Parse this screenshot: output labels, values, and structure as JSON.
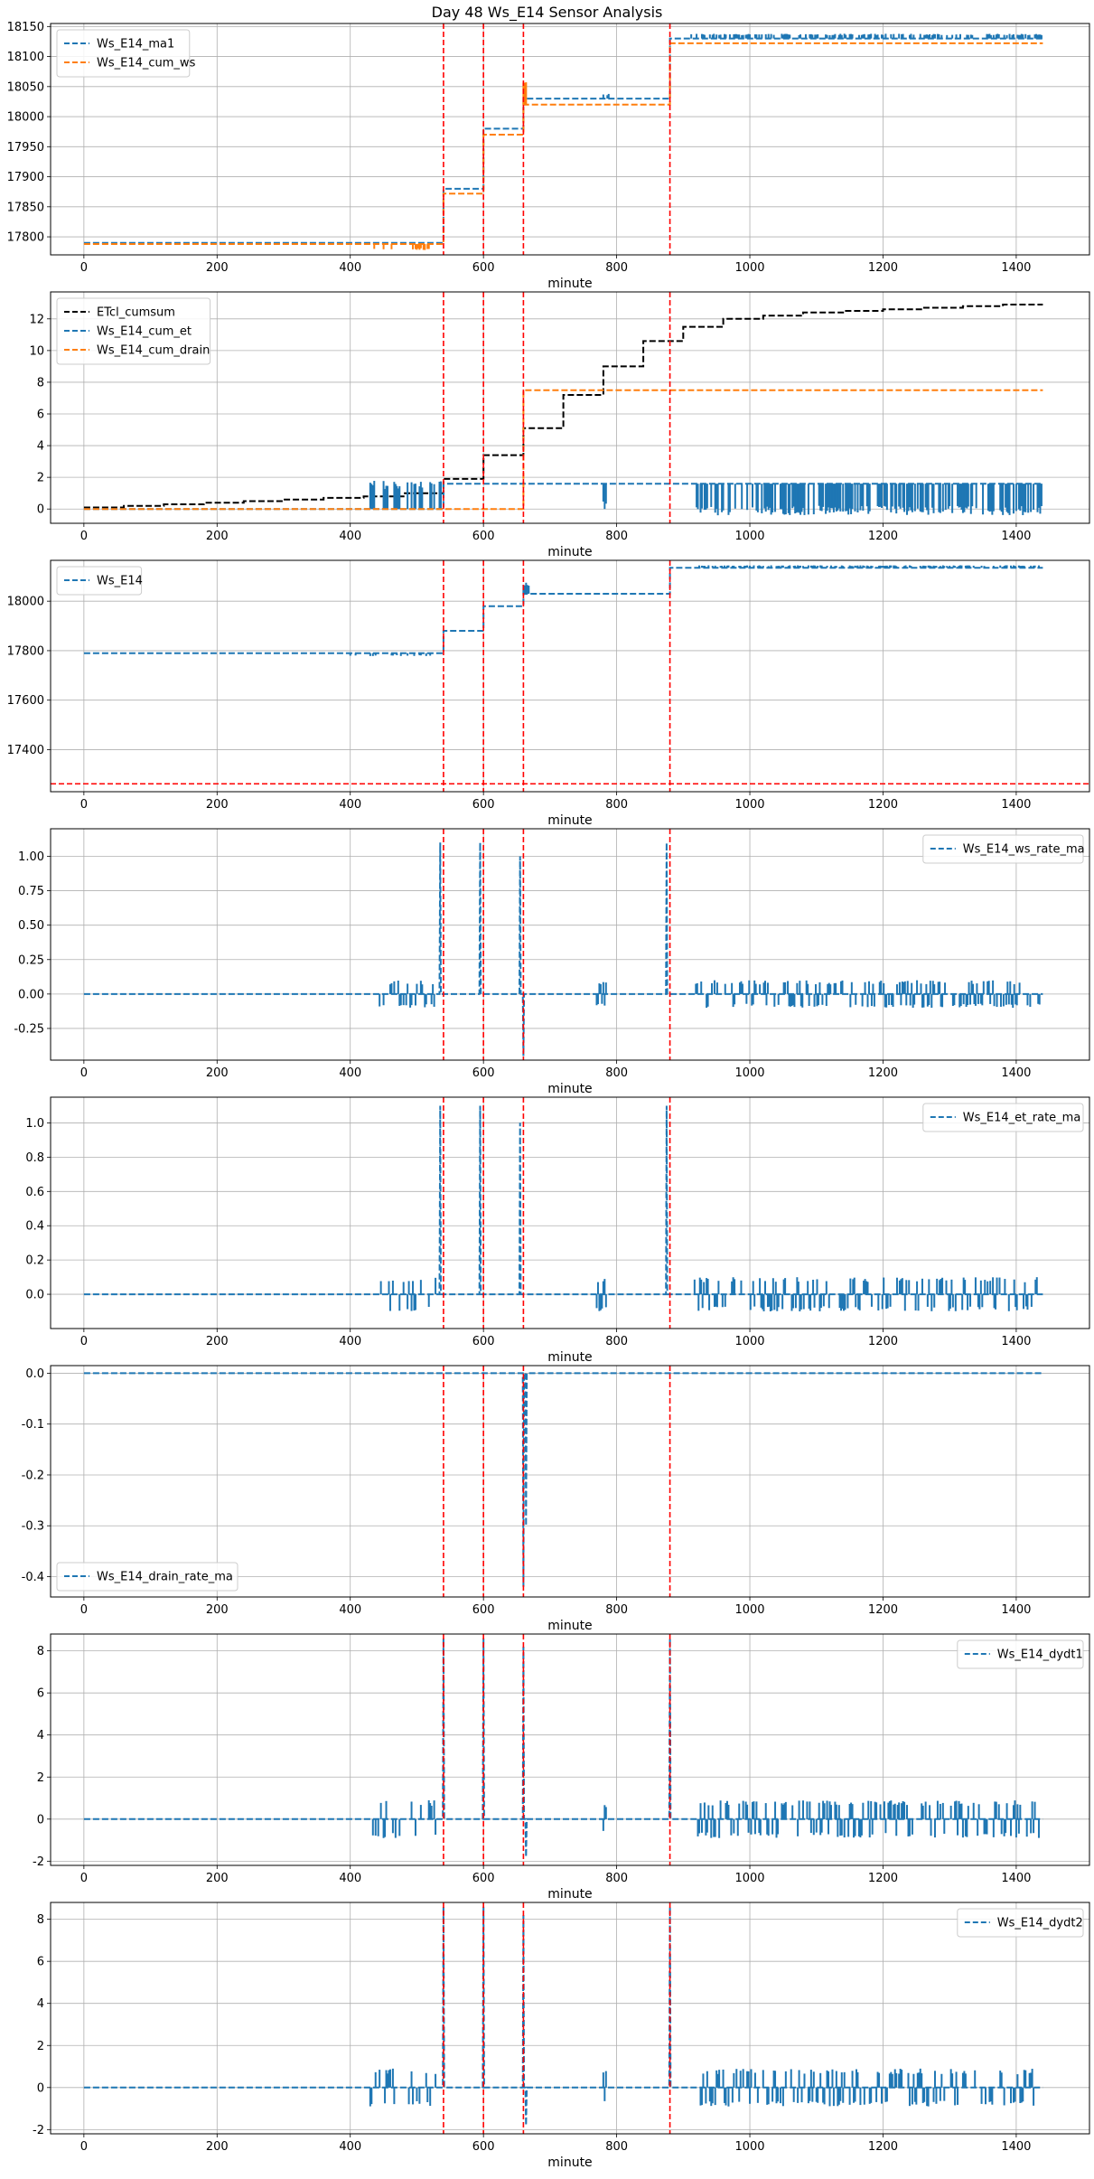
{
  "figure_title": "Day 48 Ws_E14 Sensor Analysis",
  "colors": {
    "blue": "#1f77b4",
    "orange": "#ff7f0e",
    "black": "#000000",
    "red": "#ff0000",
    "grid": "#b0b0b0"
  },
  "chart_data": [
    {
      "type": "line",
      "xlabel": "minute",
      "xlim": [
        -50,
        1510
      ],
      "ylim": [
        17770,
        18155
      ],
      "xticks": [
        0,
        200,
        400,
        600,
        800,
        1000,
        1200,
        1400
      ],
      "yticks": [
        17800,
        17850,
        17900,
        17950,
        18000,
        18050,
        18100,
        18150
      ],
      "legend_position": "top-left",
      "vlines": [
        540,
        600,
        660,
        880
      ],
      "series": [
        {
          "name": "Ws_E14_ma1",
          "color": "blue",
          "style": "dashed",
          "kind": "step",
          "steps": [
            [
              0,
              17790
            ],
            [
              540,
              17880
            ],
            [
              600,
              17980
            ],
            [
              660,
              18030
            ],
            [
              880,
              18130
            ],
            [
              1440,
              18130
            ]
          ],
          "noise": [
            [
              910,
              1440,
              8,
              0.5
            ],
            [
              780,
              790,
              8,
              0.5
            ]
          ]
        },
        {
          "name": "Ws_E14_cum_ws",
          "color": "orange",
          "style": "dashed",
          "kind": "step",
          "steps": [
            [
              0,
              17788
            ],
            [
              540,
              17872
            ],
            [
              600,
              17970
            ],
            [
              660,
              18020
            ],
            [
              880,
              18122
            ],
            [
              1440,
              18122
            ]
          ],
          "noise": [
            [
              430,
              520,
              -10,
              0.3
            ],
            [
              660,
              665,
              40,
              1
            ]
          ]
        }
      ]
    },
    {
      "type": "line",
      "xlabel": "minute",
      "xlim": [
        -50,
        1510
      ],
      "ylim": [
        -0.9,
        13.7
      ],
      "xticks": [
        0,
        200,
        400,
        600,
        800,
        1000,
        1200,
        1400
      ],
      "yticks": [
        0,
        2,
        4,
        6,
        8,
        10,
        12
      ],
      "legend_position": "top-left",
      "vlines": [
        540,
        600,
        660,
        880
      ],
      "series": [
        {
          "name": "ETcl_cumsum",
          "color": "black",
          "style": "dashed",
          "kind": "step",
          "steps": [
            [
              0,
              0.1
            ],
            [
              60,
              0.2
            ],
            [
              120,
              0.3
            ],
            [
              180,
              0.4
            ],
            [
              240,
              0.5
            ],
            [
              300,
              0.6
            ],
            [
              360,
              0.7
            ],
            [
              420,
              0.8
            ],
            [
              480,
              1.0
            ],
            [
              540,
              1.9
            ],
            [
              600,
              3.4
            ],
            [
              660,
              5.1
            ],
            [
              720,
              7.2
            ],
            [
              780,
              9.0
            ],
            [
              840,
              10.6
            ],
            [
              900,
              11.5
            ],
            [
              960,
              12.0
            ],
            [
              1020,
              12.2
            ],
            [
              1080,
              12.4
            ],
            [
              1140,
              12.5
            ],
            [
              1200,
              12.6
            ],
            [
              1260,
              12.7
            ],
            [
              1320,
              12.8
            ],
            [
              1380,
              12.9
            ],
            [
              1440,
              12.9
            ]
          ],
          "noise": []
        },
        {
          "name": "Ws_E14_cum_et",
          "color": "blue",
          "style": "dashed",
          "kind": "step",
          "steps": [
            [
              0,
              0
            ],
            [
              540,
              1.6
            ],
            [
              1440,
              1.6
            ]
          ],
          "noise": [
            [
              430,
              540,
              1.8,
              0.4
            ],
            [
              780,
              785,
              -1.6,
              1
            ],
            [
              920,
              1440,
              -2.0,
              0.6
            ]
          ]
        },
        {
          "name": "Ws_E14_cum_drain",
          "color": "orange",
          "style": "dashed",
          "kind": "step",
          "steps": [
            [
              0,
              0
            ],
            [
              660,
              7.5
            ],
            [
              1440,
              7.5
            ]
          ],
          "noise": []
        }
      ]
    },
    {
      "type": "line",
      "xlabel": "minute",
      "xlim": [
        -50,
        1510
      ],
      "ylim": [
        17230,
        18165
      ],
      "xticks": [
        0,
        200,
        400,
        600,
        800,
        1000,
        1200,
        1400
      ],
      "yticks": [
        17400,
        17600,
        17800,
        18000
      ],
      "legend_position": "top-left",
      "vlines": [
        540,
        600,
        660,
        880
      ],
      "hlines": [
        17262
      ],
      "series": [
        {
          "name": "Ws_E14",
          "color": "blue",
          "style": "dashed",
          "kind": "step",
          "steps": [
            [
              0,
              17790
            ],
            [
              540,
              17880
            ],
            [
              600,
              17980
            ],
            [
              660,
              18030
            ],
            [
              880,
              18135
            ],
            [
              1440,
              18135
            ]
          ],
          "noise": [
            [
              400,
              520,
              -12,
              0.3
            ],
            [
              660,
              668,
              45,
              1
            ],
            [
              920,
              1440,
              10,
              0.5
            ]
          ]
        }
      ]
    },
    {
      "type": "line",
      "xlabel": "minute",
      "xlim": [
        -50,
        1510
      ],
      "ylim": [
        -0.48,
        1.2
      ],
      "xticks": [
        0,
        200,
        400,
        600,
        800,
        1000,
        1200,
        1400
      ],
      "yticks": [
        -0.25,
        0,
        0.25,
        0.5,
        0.75,
        1.0
      ],
      "legend_position": "top-right",
      "vlines": [
        540,
        600,
        660,
        880
      ],
      "series": [
        {
          "name": "Ws_E14_ws_rate_ma",
          "color": "blue",
          "style": "dashed",
          "kind": "rate",
          "base": 0,
          "spikes": [
            [
              535,
              1.1
            ],
            [
              595,
              1.1
            ],
            [
              655,
              1.0
            ],
            [
              660,
              -0.45
            ],
            [
              875,
              1.1
            ]
          ],
          "noise": [
            [
              430,
              530,
              0.1,
              0.35
            ],
            [
              770,
              785,
              0.1,
              1
            ],
            [
              915,
              1435,
              0.1,
              0.55
            ]
          ]
        }
      ]
    },
    {
      "type": "line",
      "xlabel": "minute",
      "xlim": [
        -50,
        1510
      ],
      "ylim": [
        -0.2,
        1.15
      ],
      "xticks": [
        0,
        200,
        400,
        600,
        800,
        1000,
        1200,
        1400
      ],
      "yticks": [
        0,
        0.2,
        0.4,
        0.6,
        0.8,
        1.0
      ],
      "legend_position": "top-right",
      "vlines": [
        540,
        600,
        660,
        880
      ],
      "series": [
        {
          "name": "Ws_E14_et_rate_ma",
          "color": "blue",
          "style": "dashed",
          "kind": "rate",
          "base": 0,
          "spikes": [
            [
              535,
              1.1
            ],
            [
              595,
              1.1
            ],
            [
              655,
              1.0
            ],
            [
              875,
              1.1
            ]
          ],
          "noise": [
            [
              430,
              530,
              0.1,
              0.35
            ],
            [
              770,
              785,
              0.1,
              1
            ],
            [
              915,
              1435,
              0.1,
              0.55
            ]
          ]
        }
      ]
    },
    {
      "type": "line",
      "xlabel": "minute",
      "xlim": [
        -50,
        1510
      ],
      "ylim": [
        -0.44,
        0.015
      ],
      "xticks": [
        0,
        200,
        400,
        600,
        800,
        1000,
        1200,
        1400
      ],
      "yticks": [
        -0.4,
        -0.3,
        -0.2,
        -0.1,
        0.0
      ],
      "legend_position": "bottom-left",
      "vlines": [
        540,
        600,
        660,
        880
      ],
      "series": [
        {
          "name": "Ws_E14_drain_rate_ma",
          "color": "blue",
          "style": "dashed",
          "kind": "rate",
          "base": 0,
          "spikes": [
            [
              660,
              -0.42
            ],
            [
              664,
              -0.3
            ]
          ],
          "noise": []
        }
      ]
    },
    {
      "type": "line",
      "xlabel": "minute",
      "xlim": [
        -50,
        1510
      ],
      "ylim": [
        -2.2,
        8.8
      ],
      "xticks": [
        0,
        200,
        400,
        600,
        800,
        1000,
        1200,
        1400
      ],
      "yticks": [
        -2,
        0,
        2,
        4,
        6,
        8
      ],
      "legend_position": "top-right",
      "vlines": [
        540,
        600,
        660,
        880
      ],
      "series": [
        {
          "name": "Ws_E14_dydt1",
          "color": "blue",
          "style": "dashed",
          "kind": "rate",
          "base": 0,
          "spikes": [
            [
              540,
              8.6
            ],
            [
              600,
              8.6
            ],
            [
              660,
              8.2
            ],
            [
              664,
              -1.8
            ],
            [
              880,
              8.6
            ]
          ],
          "noise": [
            [
              430,
              530,
              0.9,
              0.35
            ],
            [
              780,
              785,
              0.8,
              1
            ],
            [
              920,
              1440,
              0.9,
              0.55
            ]
          ]
        }
      ]
    },
    {
      "type": "line",
      "xlabel": "minute",
      "xlim": [
        -50,
        1510
      ],
      "ylim": [
        -2.2,
        8.8
      ],
      "xticks": [
        0,
        200,
        400,
        600,
        800,
        1000,
        1200,
        1400
      ],
      "yticks": [
        -2,
        0,
        2,
        4,
        6,
        8
      ],
      "legend_position": "top-right",
      "vlines": [
        540,
        600,
        660,
        880
      ],
      "series": [
        {
          "name": "Ws_E14_dydt2",
          "color": "blue",
          "style": "dashed",
          "kind": "rate",
          "base": 0,
          "spikes": [
            [
              540,
              8.6
            ],
            [
              600,
              8.6
            ],
            [
              660,
              8.2
            ],
            [
              664,
              -1.8
            ],
            [
              880,
              8.6
            ]
          ],
          "noise": [
            [
              430,
              530,
              0.9,
              0.35
            ],
            [
              780,
              785,
              0.8,
              1
            ],
            [
              920,
              1440,
              0.9,
              0.55
            ]
          ]
        }
      ]
    }
  ]
}
